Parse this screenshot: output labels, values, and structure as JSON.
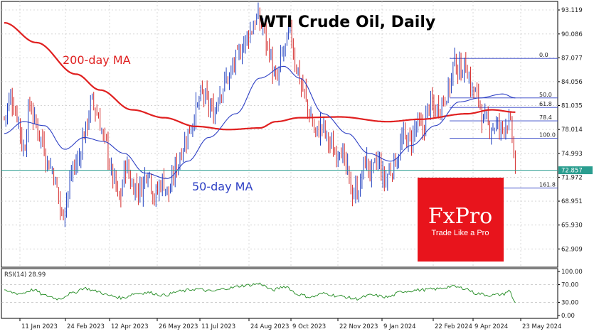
{
  "chart_data": {
    "type": "candlestick",
    "title": "WTI Crude Oil, Daily",
    "y_ticks": [
      "93.119",
      "90.086",
      "87.077",
      "84.056",
      "81.035",
      "78.014",
      "74.993",
      "71.972",
      "68.951",
      "65.930",
      "62.909"
    ],
    "ylim": [
      60.6,
      94.2
    ],
    "x_ticks": [
      "11 Jan 2023",
      "24 Feb 2023",
      "12 Apr 2023",
      "26 May 2023",
      "11 Jul 2023",
      "24 Aug 2023",
      "9 Oct 2023",
      "22 Nov 2023",
      "9 Jan 2024",
      "22 Feb 2024",
      "9 Apr 2024",
      "23 May 2024"
    ],
    "current_price": "72.857",
    "price_anchors": [
      [
        0,
        79.5
      ],
      [
        4,
        82.0
      ],
      [
        8,
        80.0
      ],
      [
        12,
        75.5
      ],
      [
        16,
        81.0
      ],
      [
        20,
        78.5
      ],
      [
        24,
        76.5
      ],
      [
        27,
        74.0
      ],
      [
        30,
        73.0
      ],
      [
        33,
        70.5
      ],
      [
        36,
        67.0
      ],
      [
        39,
        69.5
      ],
      [
        43,
        73.0
      ],
      [
        46,
        74.0
      ],
      [
        50,
        77.5
      ],
      [
        55,
        81.5
      ],
      [
        58,
        80.0
      ],
      [
        63,
        76.5
      ],
      [
        68,
        72.0
      ],
      [
        72,
        69.0
      ],
      [
        76,
        73.5
      ],
      [
        80,
        71.0
      ],
      [
        85,
        70.5
      ],
      [
        90,
        73.0
      ],
      [
        94,
        69.5
      ],
      [
        99,
        71.5
      ],
      [
        103,
        70.0
      ],
      [
        108,
        73.5
      ],
      [
        112,
        76.0
      ],
      [
        116,
        78.0
      ],
      [
        120,
        80.5
      ],
      [
        124,
        82.5
      ],
      [
        128,
        81.0
      ],
      [
        131,
        80.0
      ],
      [
        135,
        83.0
      ],
      [
        140,
        84.5
      ],
      [
        146,
        87.0
      ],
      [
        150,
        89.0
      ],
      [
        154,
        90.5
      ],
      [
        158,
        92.0
      ],
      [
        162,
        91.0
      ],
      [
        165,
        88.5
      ],
      [
        170,
        84.0
      ],
      [
        175,
        88.0
      ],
      [
        179,
        90.0
      ],
      [
        183,
        86.0
      ],
      [
        187,
        83.0
      ],
      [
        191,
        80.0
      ],
      [
        195,
        77.5
      ],
      [
        199,
        78.5
      ],
      [
        203,
        76.5
      ],
      [
        207,
        75.0
      ],
      [
        210,
        76.0
      ],
      [
        214,
        73.0
      ],
      [
        218,
        70.0
      ],
      [
        222,
        70.5
      ],
      [
        226,
        74.0
      ],
      [
        230,
        72.5
      ],
      [
        234,
        74.0
      ],
      [
        238,
        71.5
      ],
      [
        242,
        73.0
      ],
      [
        246,
        74.5
      ],
      [
        250,
        77.0
      ],
      [
        254,
        76.5
      ],
      [
        258,
        78.5
      ],
      [
        262,
        78.0
      ],
      [
        266,
        81.0
      ],
      [
        270,
        80.5
      ],
      [
        274,
        81.5
      ],
      [
        278,
        83.0
      ],
      [
        282,
        86.5
      ],
      [
        285,
        85.5
      ],
      [
        289,
        86.0
      ],
      [
        293,
        83.0
      ],
      [
        297,
        82.0
      ],
      [
        300,
        79.0
      ],
      [
        304,
        78.5
      ],
      [
        308,
        78.5
      ],
      [
        311,
        78.0
      ],
      [
        314,
        79.0
      ],
      [
        317,
        78.5
      ],
      [
        320,
        73.2
      ]
    ],
    "ma200": {
      "name": "200-day MA",
      "points": [
        [
          0,
          91.5
        ],
        [
          20,
          89.0
        ],
        [
          45,
          85.0
        ],
        [
          60,
          83.0
        ],
        [
          80,
          80.5
        ],
        [
          100,
          79.5
        ],
        [
          120,
          78.4
        ],
        [
          140,
          78.0
        ],
        [
          160,
          78.2
        ],
        [
          170,
          79.0
        ],
        [
          185,
          79.5
        ],
        [
          210,
          79.6
        ],
        [
          240,
          79.0
        ],
        [
          260,
          79.3
        ],
        [
          290,
          80.0
        ],
        [
          305,
          80.5
        ],
        [
          320,
          80.2
        ]
      ]
    },
    "ma50": {
      "name": "50-day MA",
      "points": [
        [
          0,
          77.5
        ],
        [
          12,
          79.0
        ],
        [
          25,
          78.5
        ],
        [
          38,
          75.5
        ],
        [
          50,
          77.0
        ],
        [
          62,
          76.5
        ],
        [
          75,
          75.0
        ],
        [
          88,
          72.5
        ],
        [
          102,
          71.8
        ],
        [
          115,
          74.0
        ],
        [
          128,
          77.0
        ],
        [
          145,
          80.0
        ],
        [
          160,
          84.5
        ],
        [
          175,
          86.0
        ],
        [
          185,
          84.5
        ],
        [
          200,
          80.0
        ],
        [
          215,
          77.5
        ],
        [
          228,
          75.0
        ],
        [
          242,
          74.0
        ],
        [
          255,
          76.0
        ],
        [
          270,
          78.5
        ],
        [
          285,
          81.5
        ],
        [
          298,
          82.0
        ],
        [
          312,
          82.5
        ],
        [
          320,
          82.0
        ]
      ]
    },
    "fibonacci": [
      {
        "label": "0.0",
        "price": 87.0
      },
      {
        "label": "50.0",
        "price": 82.0
      },
      {
        "label": "61.8",
        "price": 80.8
      },
      {
        "label": "78.4",
        "price": 79.1
      },
      {
        "label": "100.0",
        "price": 76.9
      },
      {
        "label": "161.8",
        "price": 70.6
      }
    ],
    "rsi": {
      "label": "RSI(14) 28.99",
      "ticks": [
        "100.00",
        "70.00",
        "30.00",
        "0.00"
      ],
      "levels": [
        70,
        30
      ],
      "anchors": [
        [
          0,
          55
        ],
        [
          10,
          50
        ],
        [
          18,
          58
        ],
        [
          26,
          45
        ],
        [
          34,
          38
        ],
        [
          42,
          50
        ],
        [
          50,
          62
        ],
        [
          58,
          55
        ],
        [
          66,
          45
        ],
        [
          74,
          40
        ],
        [
          82,
          50
        ],
        [
          90,
          52
        ],
        [
          100,
          46
        ],
        [
          110,
          55
        ],
        [
          120,
          60
        ],
        [
          130,
          55
        ],
        [
          140,
          62
        ],
        [
          150,
          68
        ],
        [
          160,
          72
        ],
        [
          168,
          58
        ],
        [
          176,
          66
        ],
        [
          184,
          48
        ],
        [
          192,
          42
        ],
        [
          200,
          50
        ],
        [
          210,
          44
        ],
        [
          220,
          38
        ],
        [
          230,
          46
        ],
        [
          240,
          42
        ],
        [
          250,
          55
        ],
        [
          260,
          58
        ],
        [
          270,
          60
        ],
        [
          280,
          66
        ],
        [
          288,
          62
        ],
        [
          296,
          50
        ],
        [
          304,
          46
        ],
        [
          312,
          48
        ],
        [
          316,
          56
        ],
        [
          320,
          29
        ]
      ]
    }
  },
  "labels": {
    "ma200": "200-day MA",
    "ma50": "50-day MA"
  },
  "logo": {
    "name": "FxPro",
    "tagline": "Trade Like a Pro",
    "color": "#e8141c"
  },
  "colors": {
    "up": "#1f3fbf",
    "down": "#d42a2a",
    "ma200": "#e02020",
    "ma50": "#2d3fc4",
    "price_line": "#2a9d8f",
    "rsi": "#1f8a1f"
  }
}
